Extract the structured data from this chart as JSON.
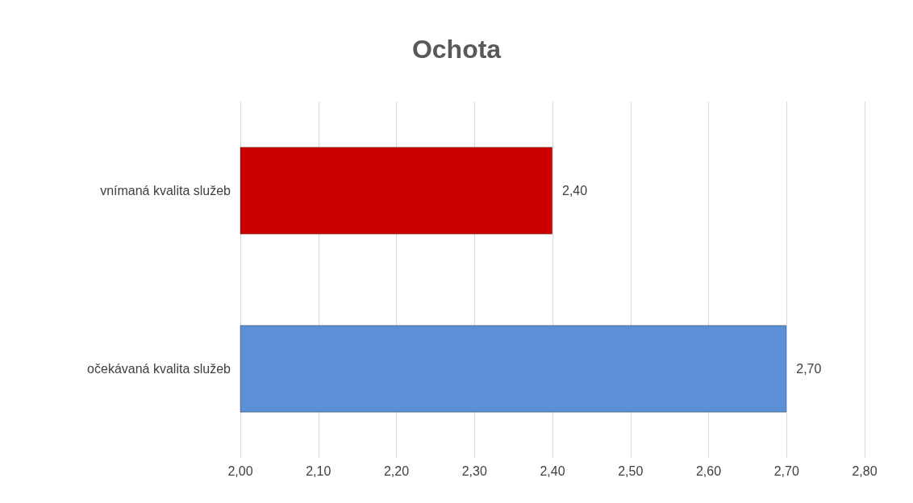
{
  "chart_data": {
    "type": "bar",
    "title": "Ochota",
    "orientation": "horizontal",
    "categories": [
      "vnímaná kvalita služeb",
      "očekávaná kvalita služeb"
    ],
    "values": [
      2.4,
      2.7
    ],
    "colors": [
      "#cc0000",
      "#5b8fd6"
    ],
    "value_labels": [
      "2,40",
      "2,70"
    ],
    "xlim": [
      2.0,
      2.8
    ],
    "xticks": [
      {
        "value": 2.0,
        "label": "2,00"
      },
      {
        "value": 2.1,
        "label": "2,10"
      },
      {
        "value": 2.2,
        "label": "2,20"
      },
      {
        "value": 2.3,
        "label": "2,30"
      },
      {
        "value": 2.4,
        "label": "2,40"
      },
      {
        "value": 2.5,
        "label": "2,50"
      },
      {
        "value": 2.6,
        "label": "2,60"
      },
      {
        "value": 2.7,
        "label": "2,70"
      },
      {
        "value": 2.8,
        "label": "2,80"
      }
    ],
    "grid": "x"
  }
}
